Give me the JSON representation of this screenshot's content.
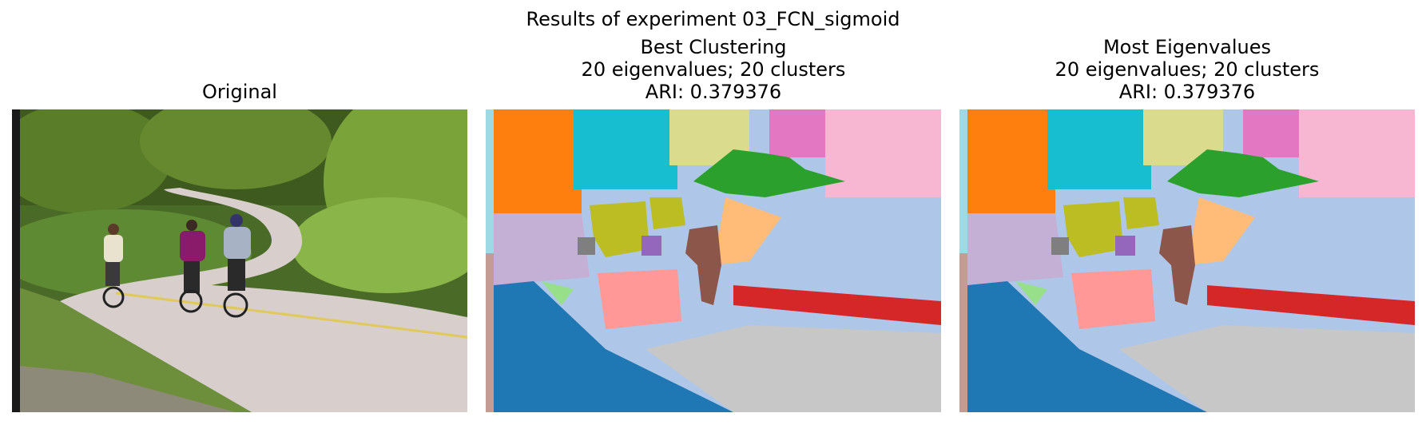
{
  "figure": {
    "suptitle": "Results of experiment 03_FCN_sigmoid"
  },
  "panels": [
    {
      "id": "original",
      "title_lines": [
        "Original"
      ]
    },
    {
      "id": "best",
      "title_lines": [
        "Best Clustering",
        "20 eigenvalues; 20 clusters",
        "ARI: 0.379376"
      ]
    },
    {
      "id": "most",
      "title_lines": [
        "Most Eigenvalues",
        "20 eigenvalues; 20 clusters",
        "ARI: 0.379376"
      ]
    }
  ],
  "colors": {
    "road_light": "#d8cfcc",
    "foliage_dark": "#3f5a1e",
    "foliage_light": "#7aa33a",
    "grass": "#6d8e3a",
    "cluster_blue": "#1f77b4",
    "cluster_orange": "#ff7f0e",
    "cluster_cyan": "#17becf",
    "cluster_khaki": "#dbdb8d",
    "cluster_green": "#2ca02c",
    "cluster_pink": "#e377c2",
    "cluster_lightpink": "#f7b6d2",
    "cluster_lightblue": "#aec7e8",
    "cluster_olive": "#bcbd22",
    "cluster_lavender": "#c5b0d5",
    "cluster_gray": "#7f7f7f",
    "cluster_purple": "#9467bd",
    "cluster_brown": "#8c564b",
    "cluster_peach": "#ffbb78",
    "cluster_red": "#d62728",
    "cluster_salmon": "#ff9896",
    "cluster_lightgreen": "#98df8a",
    "cluster_silver": "#c7c7c7",
    "cluster_teal": "#9edae5",
    "cluster_rose": "#c49c94"
  }
}
